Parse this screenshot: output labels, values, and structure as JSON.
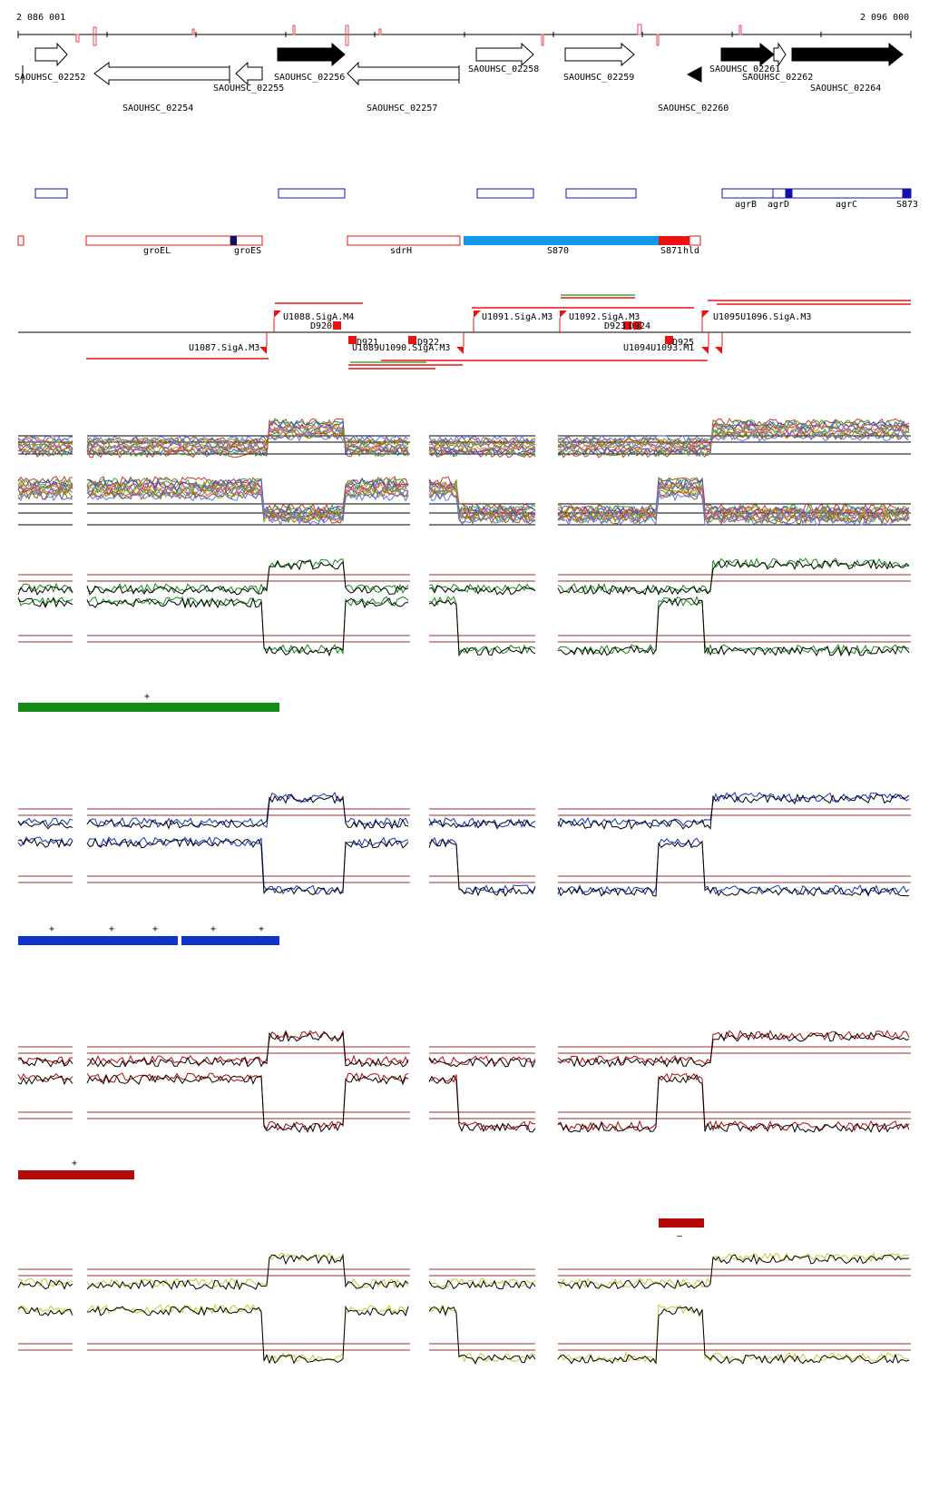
{
  "coordinates": {
    "start": "2 086 001",
    "end": "2 096 000"
  },
  "genes": [
    {
      "label": "SAOUHSC_02252",
      "strand": "+",
      "filled": false
    },
    {
      "label": "SAOUHSC_02254",
      "strand": "-",
      "filled": false
    },
    {
      "label": "SAOUHSC_02255",
      "strand": "-",
      "filled": false
    },
    {
      "label": "SAOUHSC_02256",
      "strand": "+",
      "filled": true
    },
    {
      "label": "SAOUHSC_02257",
      "strand": "-",
      "filled": false
    },
    {
      "label": "SAOUHSC_02258",
      "strand": "+",
      "filled": false
    },
    {
      "label": "SAOUHSC_02259",
      "strand": "+",
      "filled": false
    },
    {
      "label": "SAOUHSC_02260",
      "strand": "-",
      "filled": true
    },
    {
      "label": "SAOUHSC_02261",
      "strand": "+",
      "filled": true
    },
    {
      "label": "SAOUHSC_02262",
      "strand": "+",
      "filled": false
    },
    {
      "label": "SAOUHSC_02264",
      "strand": "+",
      "filled": true
    }
  ],
  "blue_annotations": [
    "agrB",
    "agrD",
    "agrC",
    "S873"
  ],
  "red_annotations": [
    "groEL",
    "groES",
    "sdrH",
    "S870",
    "S871",
    "hld"
  ],
  "promoters_plus": [
    "U1088.SigA.M4",
    "U1091.SigA.M3",
    "U1092.SigA.M3"
  ],
  "promoters_minus": [
    "U1087.SigA.M3",
    "U1089U1090.SigA.M3",
    "U1094U1093.M1"
  ],
  "promoter_cluster": "U1095U1096.SigA.M3",
  "terminators": [
    "D920",
    "D921",
    "D922",
    "D923",
    "D924",
    "D925"
  ],
  "condition_markers": {
    "green": [
      "+"
    ],
    "blue": [
      "+",
      "+",
      "+",
      "+",
      "+"
    ],
    "red": [
      "+"
    ],
    "dark_red": [
      "–"
    ]
  },
  "colors": {
    "gene_outline": "#000000",
    "blue_feature": "#1010c0",
    "red_feature": "#ee1111",
    "s870": "#1199ee",
    "green": "#138a13",
    "blue": "#1031c8",
    "red": "#b60808",
    "yellow": "#d6d632",
    "baseline": "#9b2c2c"
  }
}
